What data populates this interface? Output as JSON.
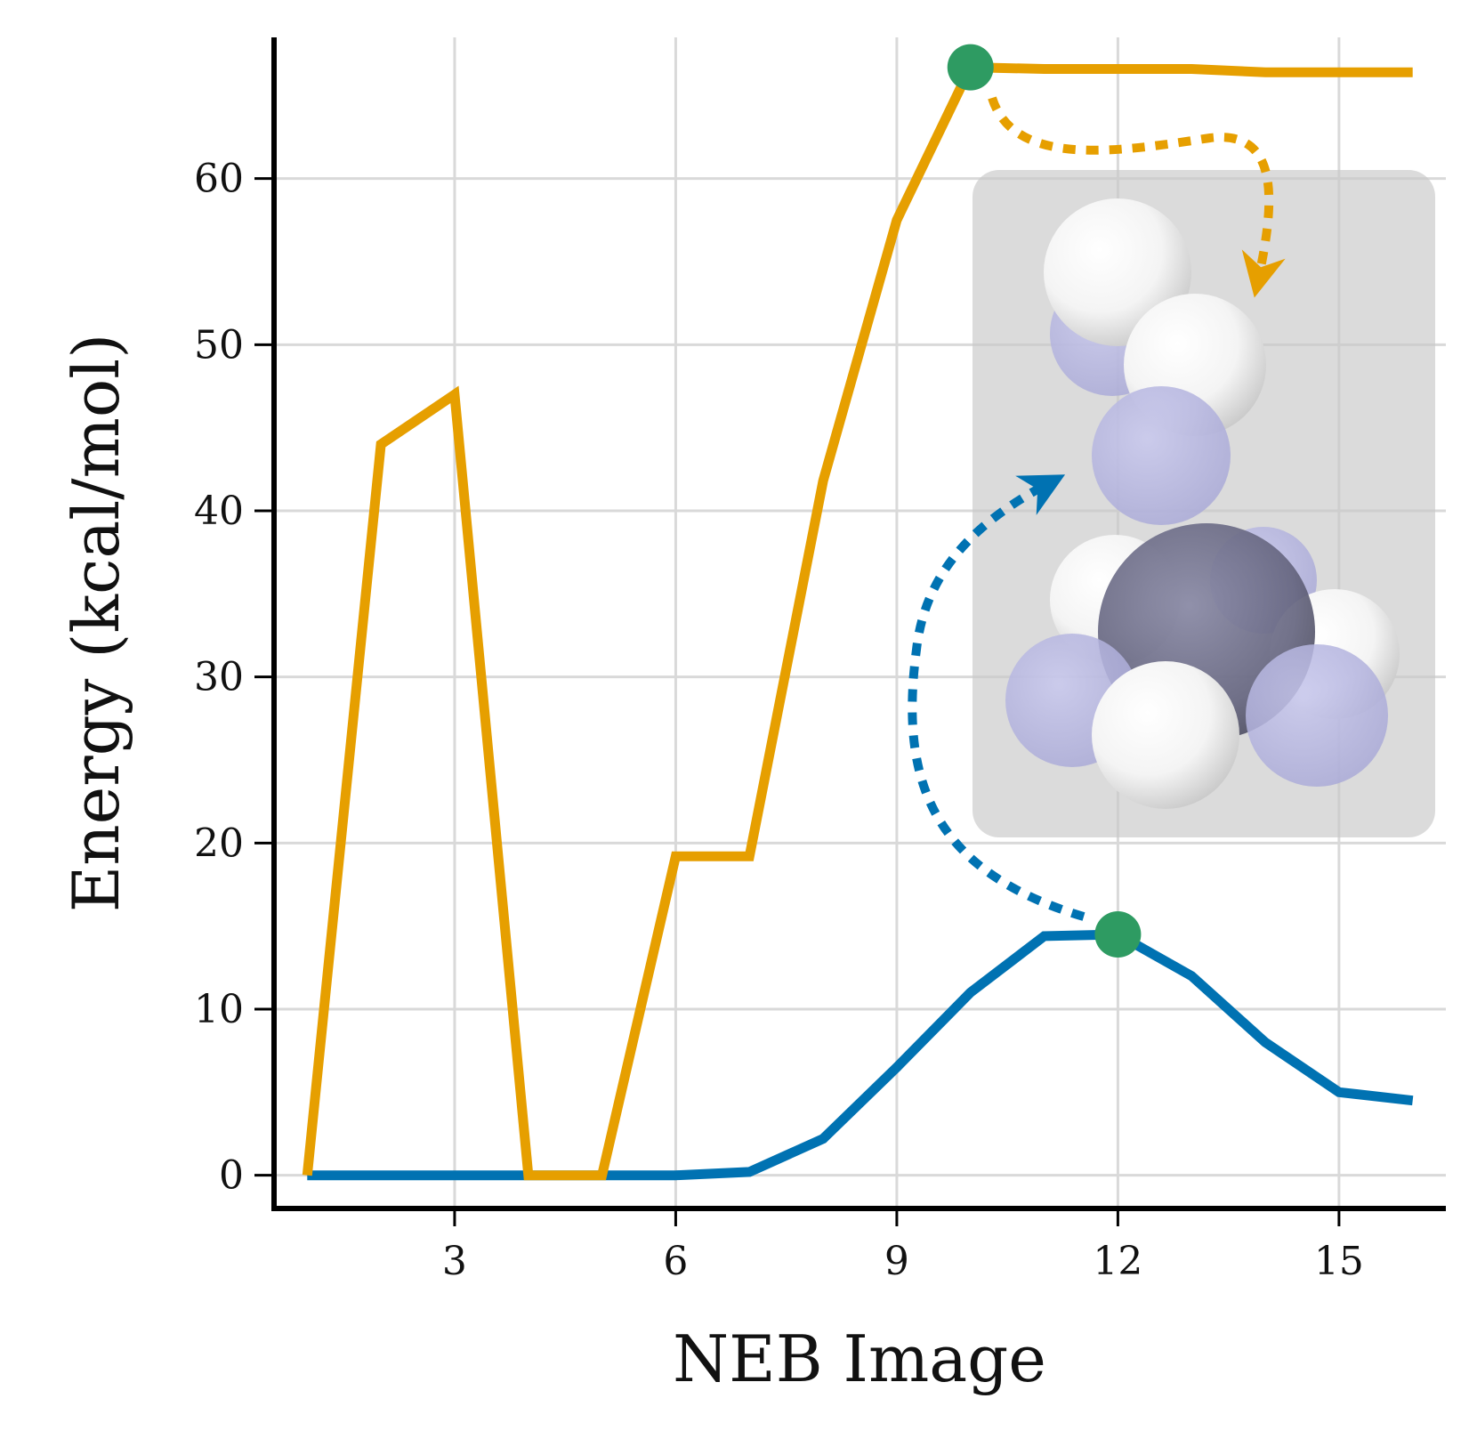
{
  "chart_data": {
    "type": "line",
    "title": "",
    "xlabel": "NEB Image",
    "ylabel": "Energy (kcal/mol)",
    "xlim": [
      0.55,
      16.45
    ],
    "ylim": [
      -2,
      68.5
    ],
    "xticks": [
      3,
      6,
      9,
      12,
      15
    ],
    "yticks": [
      0,
      10,
      20,
      30,
      40,
      50,
      60
    ],
    "grid": true,
    "legend": "none",
    "x": [
      1,
      2,
      3,
      4,
      5,
      6,
      7,
      8,
      9,
      10,
      11,
      12,
      13,
      14,
      15,
      16
    ],
    "series": [
      {
        "color": "#0072B2",
        "values": [
          0,
          0,
          0,
          0,
          0,
          0,
          0.2,
          2.2,
          6.5,
          11.0,
          14.4,
          14.5,
          12.0,
          8.0,
          5.0,
          4.5
        ],
        "highlight": {
          "x": 12,
          "y": 14.5
        }
      },
      {
        "color": "#E69F00",
        "values": [
          0,
          44.0,
          47.0,
          0,
          0,
          19.2,
          19.2,
          41.8,
          57.5,
          66.7,
          66.6,
          66.6,
          66.6,
          66.4,
          66.4,
          66.4
        ],
        "highlight": {
          "x": 10,
          "y": 66.7
        }
      }
    ],
    "highlight_color": "#2E9B62",
    "inset": "molecular structure (space-filling model)"
  }
}
